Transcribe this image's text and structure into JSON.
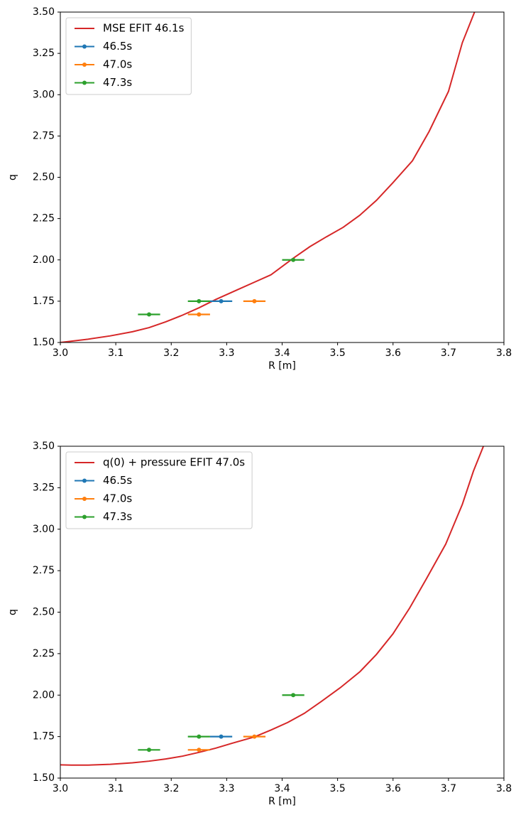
{
  "chart_data": [
    {
      "type": "line",
      "xlabel": "R [m]",
      "ylabel": "q",
      "legend": "upper left",
      "xlim": [
        3.0,
        3.8
      ],
      "ylim": [
        1.5,
        3.5
      ],
      "xticks": [
        {
          "value": 3.0,
          "label": "3.0"
        },
        3.1,
        3.2,
        3.3,
        3.4,
        3.5,
        3.6,
        3.7,
        3.8
      ],
      "yticks": [
        {
          "value": 1.5,
          "label": "1.50"
        },
        {
          "value": 1.75,
          "label": "1.75"
        },
        {
          "value": 2.0,
          "label": "2.00"
        },
        {
          "value": 2.25,
          "label": "2.25"
        },
        {
          "value": 2.5,
          "label": "2.50"
        },
        {
          "value": 2.75,
          "label": "2.75"
        },
        {
          "value": 3.0,
          "label": "3.00"
        },
        {
          "value": 3.25,
          "label": "3.25"
        },
        {
          "value": 3.5,
          "label": "3.50"
        }
      ],
      "series": [
        {
          "name": "MSE EFIT 46.1s",
          "color": "#d62728",
          "x": [
            3.0,
            3.05,
            3.09,
            3.13,
            3.16,
            3.19,
            3.22,
            3.25,
            3.28,
            3.32,
            3.35,
            3.38,
            3.42,
            3.45,
            3.48,
            3.51,
            3.54,
            3.57,
            3.6,
            3.635,
            3.665,
            3.7,
            3.725,
            3.747
          ],
          "values": [
            1.5,
            1.52,
            1.54,
            1.565,
            1.59,
            1.625,
            1.665,
            1.71,
            1.76,
            1.82,
            1.865,
            1.91,
            2.01,
            2.08,
            2.14,
            2.197,
            2.27,
            2.36,
            2.468,
            2.6,
            2.777,
            3.02,
            3.315,
            3.5
          ]
        },
        {
          "name": "46.5s",
          "color": "#1f77b4",
          "x": [
            3.29
          ],
          "values": [
            1.75
          ],
          "xerr": [
            0.02
          ]
        },
        {
          "name": "47.0s",
          "color": "#ff7f0e",
          "x": [
            3.25,
            3.35
          ],
          "values": [
            1.67,
            1.75
          ],
          "xerr": [
            0.02,
            0.02
          ]
        },
        {
          "name": "47.3s",
          "color": "#2ca02c",
          "x": [
            3.16,
            3.25,
            3.42
          ],
          "values": [
            1.67,
            1.75,
            2.0
          ],
          "xerr": [
            0.02,
            0.02,
            0.02
          ]
        }
      ]
    },
    {
      "type": "line",
      "xlabel": "R [m]",
      "ylabel": "q",
      "legend": "upper left",
      "xlim": [
        3.0,
        3.8
      ],
      "ylim": [
        1.5,
        3.5
      ],
      "xticks": [
        {
          "value": 3.0,
          "label": "3.0"
        },
        3.1,
        3.2,
        3.3,
        3.4,
        3.5,
        3.6,
        3.7,
        3.8
      ],
      "yticks": [
        {
          "value": 1.5,
          "label": "1.50"
        },
        {
          "value": 1.75,
          "label": "1.75"
        },
        {
          "value": 2.0,
          "label": "2.00"
        },
        {
          "value": 2.25,
          "label": "2.25"
        },
        {
          "value": 2.5,
          "label": "2.50"
        },
        {
          "value": 2.75,
          "label": "2.75"
        },
        {
          "value": 3.0,
          "label": "3.00"
        },
        {
          "value": 3.25,
          "label": "3.25"
        },
        {
          "value": 3.5,
          "label": "3.50"
        }
      ],
      "series": [
        {
          "name": "q(0) + pressure EFIT 47.0s",
          "color": "#d62728",
          "x": [
            3.0,
            3.02,
            3.05,
            3.09,
            3.13,
            3.16,
            3.19,
            3.22,
            3.25,
            3.28,
            3.31,
            3.35,
            3.38,
            3.41,
            3.44,
            3.47,
            3.505,
            3.54,
            3.57,
            3.6,
            3.63,
            3.66,
            3.695,
            3.725,
            3.745,
            3.763
          ],
          "values": [
            1.58,
            1.578,
            1.578,
            1.583,
            1.592,
            1.602,
            1.615,
            1.632,
            1.655,
            1.68,
            1.71,
            1.748,
            1.79,
            1.835,
            1.89,
            1.96,
            2.045,
            2.14,
            2.245,
            2.37,
            2.525,
            2.7,
            2.91,
            3.15,
            3.35,
            3.5
          ]
        },
        {
          "name": "46.5s",
          "color": "#1f77b4",
          "x": [
            3.29
          ],
          "values": [
            1.75
          ],
          "xerr": [
            0.02
          ]
        },
        {
          "name": "47.0s",
          "color": "#ff7f0e",
          "x": [
            3.25,
            3.35
          ],
          "values": [
            1.67,
            1.75
          ],
          "xerr": [
            0.02,
            0.02
          ]
        },
        {
          "name": "47.3s",
          "color": "#2ca02c",
          "x": [
            3.16,
            3.25,
            3.42
          ],
          "values": [
            1.67,
            1.75,
            2.0
          ],
          "xerr": [
            0.02,
            0.02,
            0.02
          ]
        }
      ]
    }
  ]
}
